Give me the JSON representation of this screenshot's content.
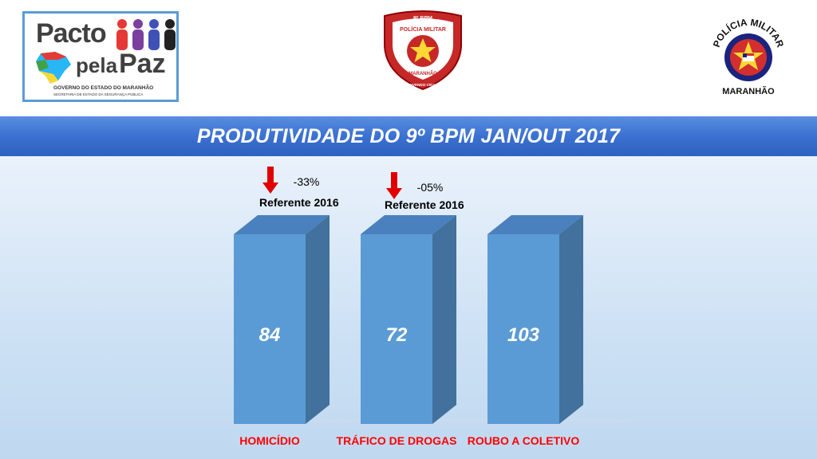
{
  "header": {
    "pacto_logo": {
      "word1": "Pacto",
      "word2": "pela",
      "word3": "Paz",
      "gov_text": "GOVERNO DO ESTADO DO MARANHÃO",
      "sec_text": "SECRETARIA DE ESTADO DA SEGURANÇA PÚBLICA"
    },
    "badge": {
      "top": "9º BPM",
      "line1": "POLÍCIA MILITAR",
      "line2": "MARANHÃO",
      "bottom": "PROMOVENDO CIDADANIA"
    },
    "seal": {
      "top": "POLÍCIA MILITAR",
      "bottom": "MARANHÃO"
    }
  },
  "colors": {
    "banner": "#3b71d1",
    "bar_front": "#5b9bd5",
    "bar_side": "#41719c",
    "bar_top": "#4a80bd",
    "label": "#ff0000",
    "arrow": "#e00000"
  },
  "chart_data": {
    "type": "bar",
    "title": "PRODUTIVIDADE DO 9º BPM JAN/OUT 2017",
    "categories": [
      "HOMICÍDIO",
      "TRÁFICO DE DROGAS",
      "ROUBO A COLETIVO"
    ],
    "values": [
      84,
      72,
      103
    ],
    "data_labels": [
      "84",
      "72",
      "103"
    ],
    "annotations": [
      {
        "category": "HOMICÍDIO",
        "direction": "down",
        "change": "-33%",
        "note": "Referente 2016"
      },
      {
        "category": "TRÁFICO DE DROGAS",
        "direction": "down",
        "change": "-05%",
        "note": "Referente 2016"
      }
    ],
    "grid": false,
    "legend": "none"
  }
}
